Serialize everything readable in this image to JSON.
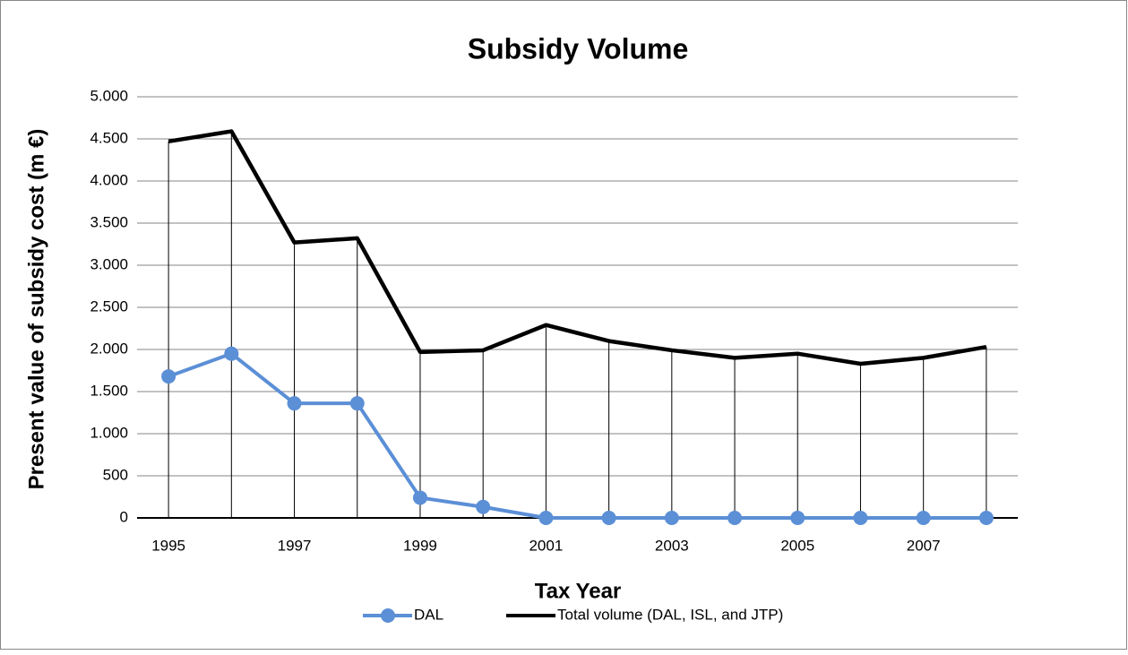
{
  "chart_data": {
    "type": "line",
    "title": "Subsidy Volume",
    "x_label": "Tax Year",
    "y_label": "Present value of subsidy cost (m €)",
    "categories": [
      "1995",
      null,
      "1997",
      null,
      "1999",
      null,
      "2001",
      null,
      "2003",
      null,
      "2005",
      null,
      "2007",
      null
    ],
    "series": [
      {
        "name": "DAL",
        "color": "#5b8fd6",
        "values": [
          1680,
          1950,
          1360,
          1360,
          240,
          130,
          0,
          0,
          0,
          0,
          0,
          0,
          0,
          0
        ]
      },
      {
        "name": "Total volume (DAL, ISL, and JTP)",
        "color": "#000000",
        "values": [
          4470,
          4590,
          3270,
          3320,
          1970,
          1990,
          2290,
          2100,
          1990,
          1900,
          1950,
          1830,
          1900,
          2030
        ]
      }
    ],
    "drop_lines": true,
    "ylim": [
      0,
      5000
    ],
    "yticks": [
      0,
      500,
      {
        "value": 1000,
        "label": "1.000"
      },
      {
        "value": 1500,
        "label": "1.500"
      },
      {
        "value": 2000,
        "label": "2.000"
      },
      {
        "value": 2500,
        "label": "2.500"
      },
      {
        "value": 3000,
        "label": "3.000"
      },
      {
        "value": 3500,
        "label": "3.500"
      },
      {
        "value": 4000,
        "label": "4.000"
      },
      {
        "value": 4500,
        "label": "4.500"
      },
      {
        "value": 5000,
        "label": "5.000"
      }
    ],
    "grid": true,
    "legend": "bottom"
  }
}
